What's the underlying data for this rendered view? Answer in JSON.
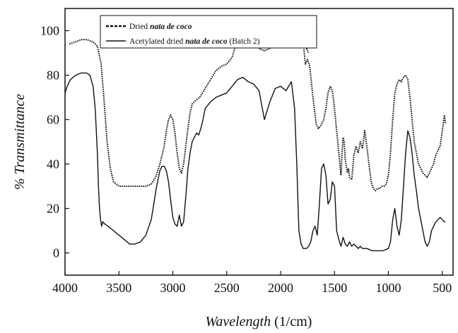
{
  "chart_data": {
    "type": "line",
    "title": "",
    "xlabel": {
      "italic": "Wavelength",
      "unit": " (1/cm)"
    },
    "ylabel": "% Transmittance",
    "xlim": [
      4000,
      400
    ],
    "ylim": [
      -10,
      110
    ],
    "x_ticks": [
      4000,
      3500,
      3000,
      2500,
      2000,
      1500,
      1000,
      500
    ],
    "y_ticks": [
      0,
      20,
      40,
      60,
      80,
      100
    ],
    "grid": false,
    "legend_position": "top-left",
    "series": [
      {
        "name_parts": [
          {
            "t": "Dried ",
            "i": false
          },
          {
            "t": "nata de coco",
            "i": true
          }
        ],
        "style": "dotted",
        "color": "#111111",
        "x": [
          3960,
          3900,
          3850,
          3800,
          3740,
          3700,
          3665,
          3640,
          3610,
          3580,
          3550,
          3500,
          3450,
          3400,
          3350,
          3300,
          3250,
          3200,
          3160,
          3120,
          3080,
          3060,
          3040,
          3020,
          3000,
          2980,
          2960,
          2940,
          2920,
          2900,
          2880,
          2860,
          2840,
          2820,
          2800,
          2780,
          2750,
          2700,
          2650,
          2600,
          2550,
          2500,
          2450,
          2420,
          2390,
          2360,
          2330,
          2300,
          2250,
          2200,
          2150,
          2100,
          2050,
          2000,
          1950,
          1900,
          1850,
          1820,
          1790,
          1770,
          1750,
          1730,
          1700,
          1670,
          1650,
          1630,
          1600,
          1580,
          1560,
          1540,
          1520,
          1500,
          1480,
          1460,
          1440,
          1430,
          1420,
          1410,
          1400,
          1380,
          1370,
          1360,
          1340,
          1320,
          1300,
          1280,
          1260,
          1240,
          1220,
          1200,
          1180,
          1160,
          1140,
          1120,
          1100,
          1080,
          1060,
          1040,
          1020,
          1000,
          980,
          960,
          940,
          920,
          900,
          880,
          860,
          840,
          820,
          800,
          780,
          760,
          740,
          720,
          700,
          680,
          660,
          640,
          620,
          600,
          580,
          560,
          540,
          520,
          500,
          480,
          470
        ],
        "y": [
          94,
          95,
          96,
          96,
          95,
          93,
          85,
          70,
          50,
          38,
          32,
          30,
          30,
          30,
          30,
          30,
          30,
          31,
          34,
          40,
          48,
          55,
          60,
          62,
          60,
          54,
          45,
          38,
          36,
          40,
          48,
          56,
          63,
          67,
          68,
          69,
          70,
          74,
          78,
          82,
          84,
          85,
          88,
          93,
          98,
          102,
          99,
          96,
          94,
          92,
          91,
          92,
          95,
          98,
          100,
          101,
          100,
          99,
          95,
          85,
          87,
          84,
          70,
          58,
          56,
          57,
          60,
          65,
          72,
          75,
          73,
          65,
          55,
          45,
          35,
          45,
          52,
          50,
          42,
          36,
          38,
          34,
          33,
          44,
          48,
          45,
          50,
          47,
          55,
          48,
          40,
          32,
          29,
          28,
          29,
          29,
          30,
          30,
          31,
          35,
          45,
          60,
          72,
          76,
          78,
          77,
          79,
          80,
          78,
          70,
          60,
          50,
          45,
          40,
          38,
          36,
          35,
          34,
          36,
          38,
          40,
          44,
          46,
          48,
          55,
          62,
          58
        ],
        "extra_segment": {
          "x": [
            1760,
            1740
          ],
          "y": [
            92,
            90
          ]
        }
      },
      {
        "name_parts": [
          {
            "t": "Acetylated dried ",
            "i": false
          },
          {
            "t": "nata de coco",
            "i": true
          },
          {
            "t": " (Batch 2)",
            "i": false
          }
        ],
        "style": "solid",
        "color": "#111111",
        "x": [
          4000,
          3980,
          3950,
          3900,
          3850,
          3800,
          3770,
          3740,
          3720,
          3700,
          3690,
          3680,
          3670,
          3660,
          3650,
          3630,
          3600,
          3550,
          3500,
          3450,
          3400,
          3350,
          3300,
          3250,
          3200,
          3150,
          3120,
          3100,
          3080,
          3060,
          3040,
          3020,
          3000,
          2980,
          2960,
          2940,
          2920,
          2900,
          2880,
          2860,
          2840,
          2820,
          2800,
          2780,
          2760,
          2740,
          2720,
          2700,
          2650,
          2600,
          2550,
          2500,
          2450,
          2400,
          2350,
          2300,
          2250,
          2200,
          2150,
          2100,
          2050,
          2000,
          1950,
          1900,
          1870,
          1850,
          1830,
          1810,
          1790,
          1770,
          1760,
          1740,
          1720,
          1700,
          1680,
          1660,
          1640,
          1620,
          1600,
          1580,
          1560,
          1540,
          1520,
          1500,
          1480,
          1460,
          1440,
          1420,
          1400,
          1380,
          1360,
          1340,
          1320,
          1300,
          1280,
          1260,
          1240,
          1220,
          1200,
          1150,
          1100,
          1050,
          1000,
          980,
          960,
          940,
          920,
          900,
          880,
          860,
          840,
          820,
          800,
          780,
          760,
          740,
          720,
          700,
          680,
          660,
          640,
          620,
          600,
          580,
          560,
          540,
          520,
          500,
          480,
          470
        ],
        "y": [
          72,
          75,
          78,
          80,
          81,
          81,
          80,
          75,
          65,
          45,
          30,
          20,
          15,
          12,
          14,
          13,
          12,
          10,
          8,
          6,
          4,
          4,
          5,
          8,
          15,
          30,
          37,
          39,
          39,
          37,
          32,
          24,
          16,
          13,
          12,
          17,
          12,
          14,
          25,
          38,
          45,
          50,
          52,
          54,
          53,
          56,
          60,
          65,
          68,
          70,
          71,
          72,
          75,
          78,
          79,
          77,
          76,
          73,
          60,
          68,
          74,
          75,
          73,
          77,
          65,
          40,
          10,
          4,
          2,
          2,
          2,
          3,
          5,
          10,
          12,
          8,
          22,
          38,
          40,
          35,
          22,
          24,
          32,
          30,
          10,
          6,
          3,
          7,
          4,
          3,
          5,
          3,
          4,
          3,
          2,
          3,
          2,
          2,
          2,
          1,
          1,
          1,
          2,
          5,
          15,
          20,
          12,
          8,
          15,
          30,
          45,
          55,
          52,
          45,
          35,
          28,
          20,
          15,
          10,
          5,
          3,
          5,
          10,
          12,
          14,
          15,
          16,
          15,
          14,
          14
        ]
      }
    ]
  }
}
